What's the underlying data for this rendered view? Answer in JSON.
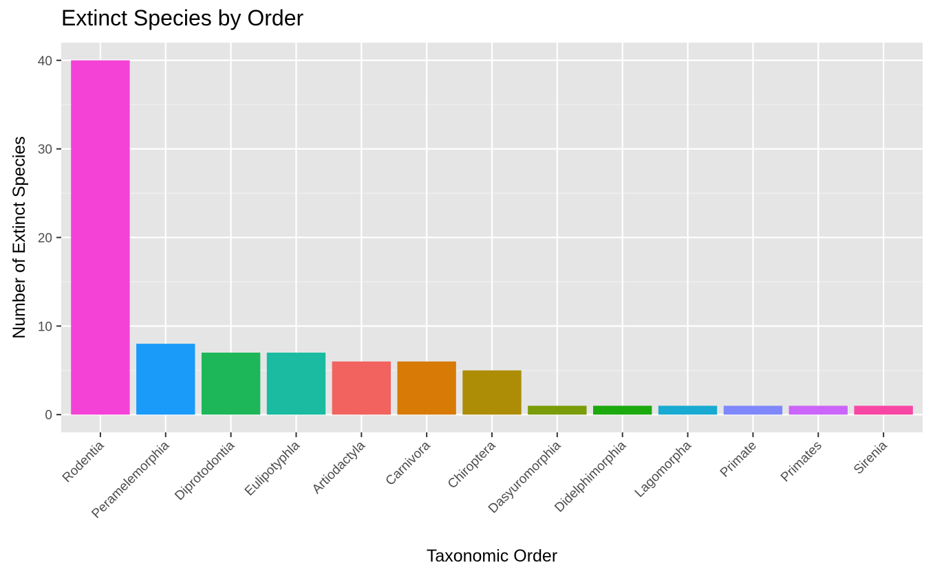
{
  "chart_data": {
    "type": "bar",
    "title": "Extinct Species by Order",
    "xlabel": "Taxonomic Order",
    "ylabel": "Number of Extinct Species",
    "ylim": [
      -2,
      42
    ],
    "yticks": [
      0,
      10,
      20,
      30,
      40
    ],
    "grid": true,
    "legend": "none",
    "categories": [
      "Rodentia",
      "Peramelemorphia",
      "Diprotodontia",
      "Eulipotyphla",
      "Artiodactyla",
      "Carnivora",
      "Chiroptera",
      "Dasyuromorphia",
      "Didelphimorphia",
      "Lagomorpha",
      "Primate",
      "Primates",
      "Sirenia"
    ],
    "values": [
      40,
      8,
      7,
      7,
      6,
      6,
      5,
      1,
      1,
      1,
      1,
      1,
      1
    ],
    "colors": [
      "#F442D6",
      "#1A9BFA",
      "#1DB75A",
      "#1ABBA0",
      "#F2625F",
      "#D87A06",
      "#AD8D06",
      "#7A9C08",
      "#1CA90E",
      "#19AAD1",
      "#7F88FA",
      "#CB64F8",
      "#F846A4"
    ]
  }
}
